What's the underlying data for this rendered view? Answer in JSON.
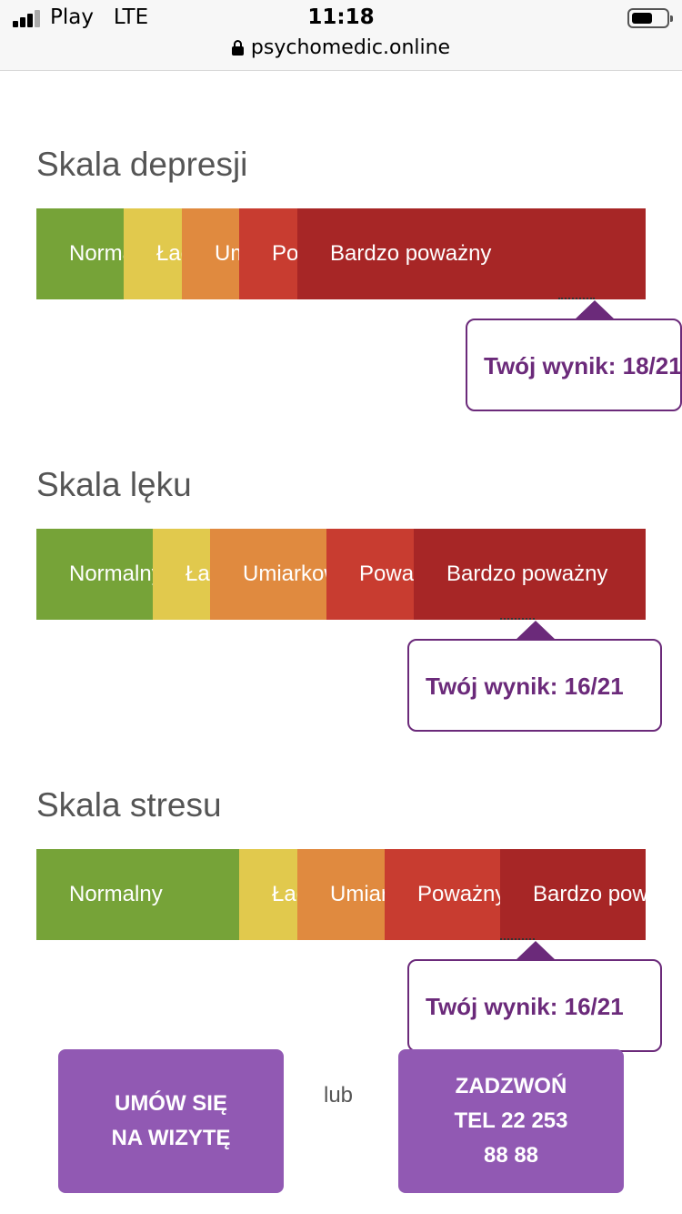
{
  "status": {
    "carrier": "Play",
    "network": "LTE",
    "time": "11:18",
    "url": "psychomedic.online"
  },
  "scales": [
    {
      "title": "Skala depresji",
      "segments": [
        {
          "label": "Normalny",
          "level": "normal"
        },
        {
          "label": "Łagodny",
          "level": "light"
        },
        {
          "label": "Umiarkowany",
          "level": "moderate"
        },
        {
          "label": "Poważny",
          "level": "severe"
        },
        {
          "label": "Bardzo poważny",
          "level": "very-severe"
        }
      ],
      "result": "Twój wynik: 18/21",
      "score": 18,
      "max": 21
    },
    {
      "title": "Skala lęku",
      "segments": [
        {
          "label": "Normalny",
          "level": "normal"
        },
        {
          "label": "Łagodny",
          "level": "light"
        },
        {
          "label": "Umiarkowany",
          "level": "moderate"
        },
        {
          "label": "Poważny",
          "level": "severe"
        },
        {
          "label": "Bardzo poważny",
          "level": "very-severe"
        }
      ],
      "result": "Twój wynik: 16/21",
      "score": 16,
      "max": 21
    },
    {
      "title": "Skala stresu",
      "segments": [
        {
          "label": "Normalny",
          "level": "normal"
        },
        {
          "label": "Łagodny",
          "level": "light"
        },
        {
          "label": "Umiarkowany",
          "level": "moderate"
        },
        {
          "label": "Poważny",
          "level": "severe"
        },
        {
          "label": "Bardzo poważny",
          "level": "very-severe"
        }
      ],
      "result": "Twój wynik: 16/21",
      "score": 16,
      "max": 21
    }
  ],
  "cta": {
    "appointment": "UMÓW SIĘ\nNA WIZYTĘ",
    "or": "lub",
    "call": "ZADZWOŃ\nTEL 22 253\n88 88"
  },
  "colors": {
    "normal": "#76a338",
    "light": "#e1c94d",
    "moderate": "#e08a3f",
    "severe": "#c83c30",
    "very_severe": "#a72626",
    "accent": "#6b2a7a",
    "button": "#9159b3"
  }
}
